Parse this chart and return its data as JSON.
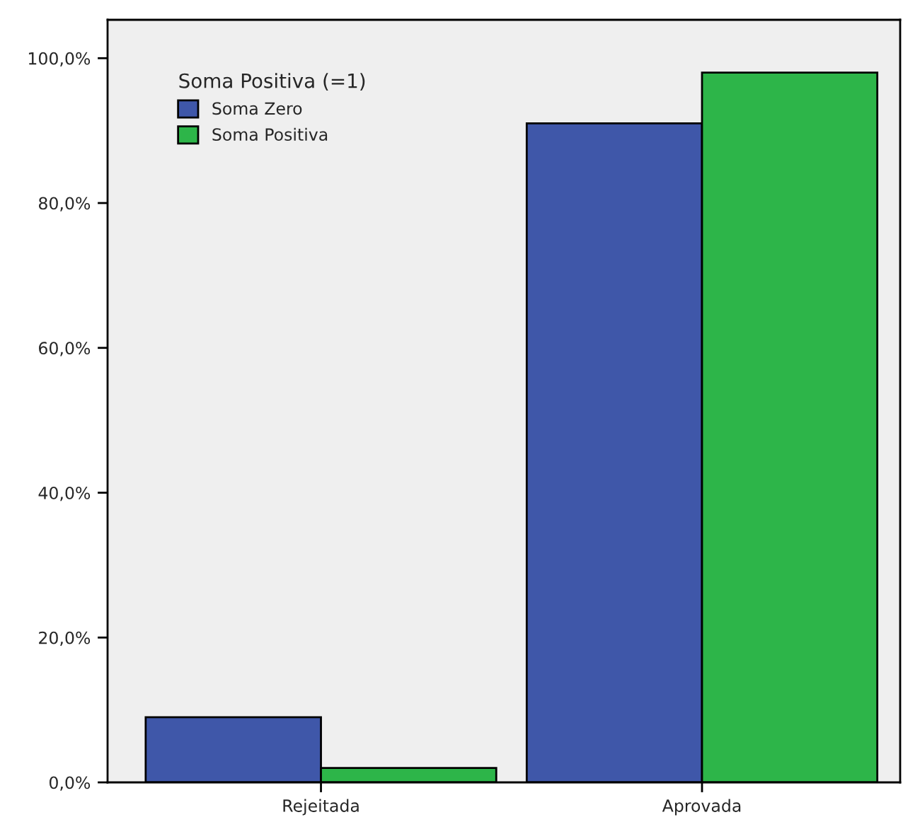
{
  "chart_data": {
    "type": "bar",
    "categories": [
      "Rejeitada",
      "Aprovada"
    ],
    "series": [
      {
        "name": "Soma Zero",
        "color": "#3f57a9",
        "values": [
          9.0,
          91.0
        ]
      },
      {
        "name": "Soma Positiva",
        "color": "#2db549",
        "values": [
          2.0,
          98.0
        ]
      }
    ],
    "legend_title": "Soma Positiva (=1)",
    "legend": "top left",
    "ylim": [
      0,
      105.3
    ],
    "yticks": [
      {
        "value": 0,
        "label": "0,0%"
      },
      {
        "value": 20,
        "label": "20,0%"
      },
      {
        "value": 40,
        "label": "40,0%"
      },
      {
        "value": 60,
        "label": "60,0%"
      },
      {
        "value": 80,
        "label": "80,0%"
      },
      {
        "value": 100,
        "label": "100,0%"
      }
    ],
    "grid": false
  }
}
